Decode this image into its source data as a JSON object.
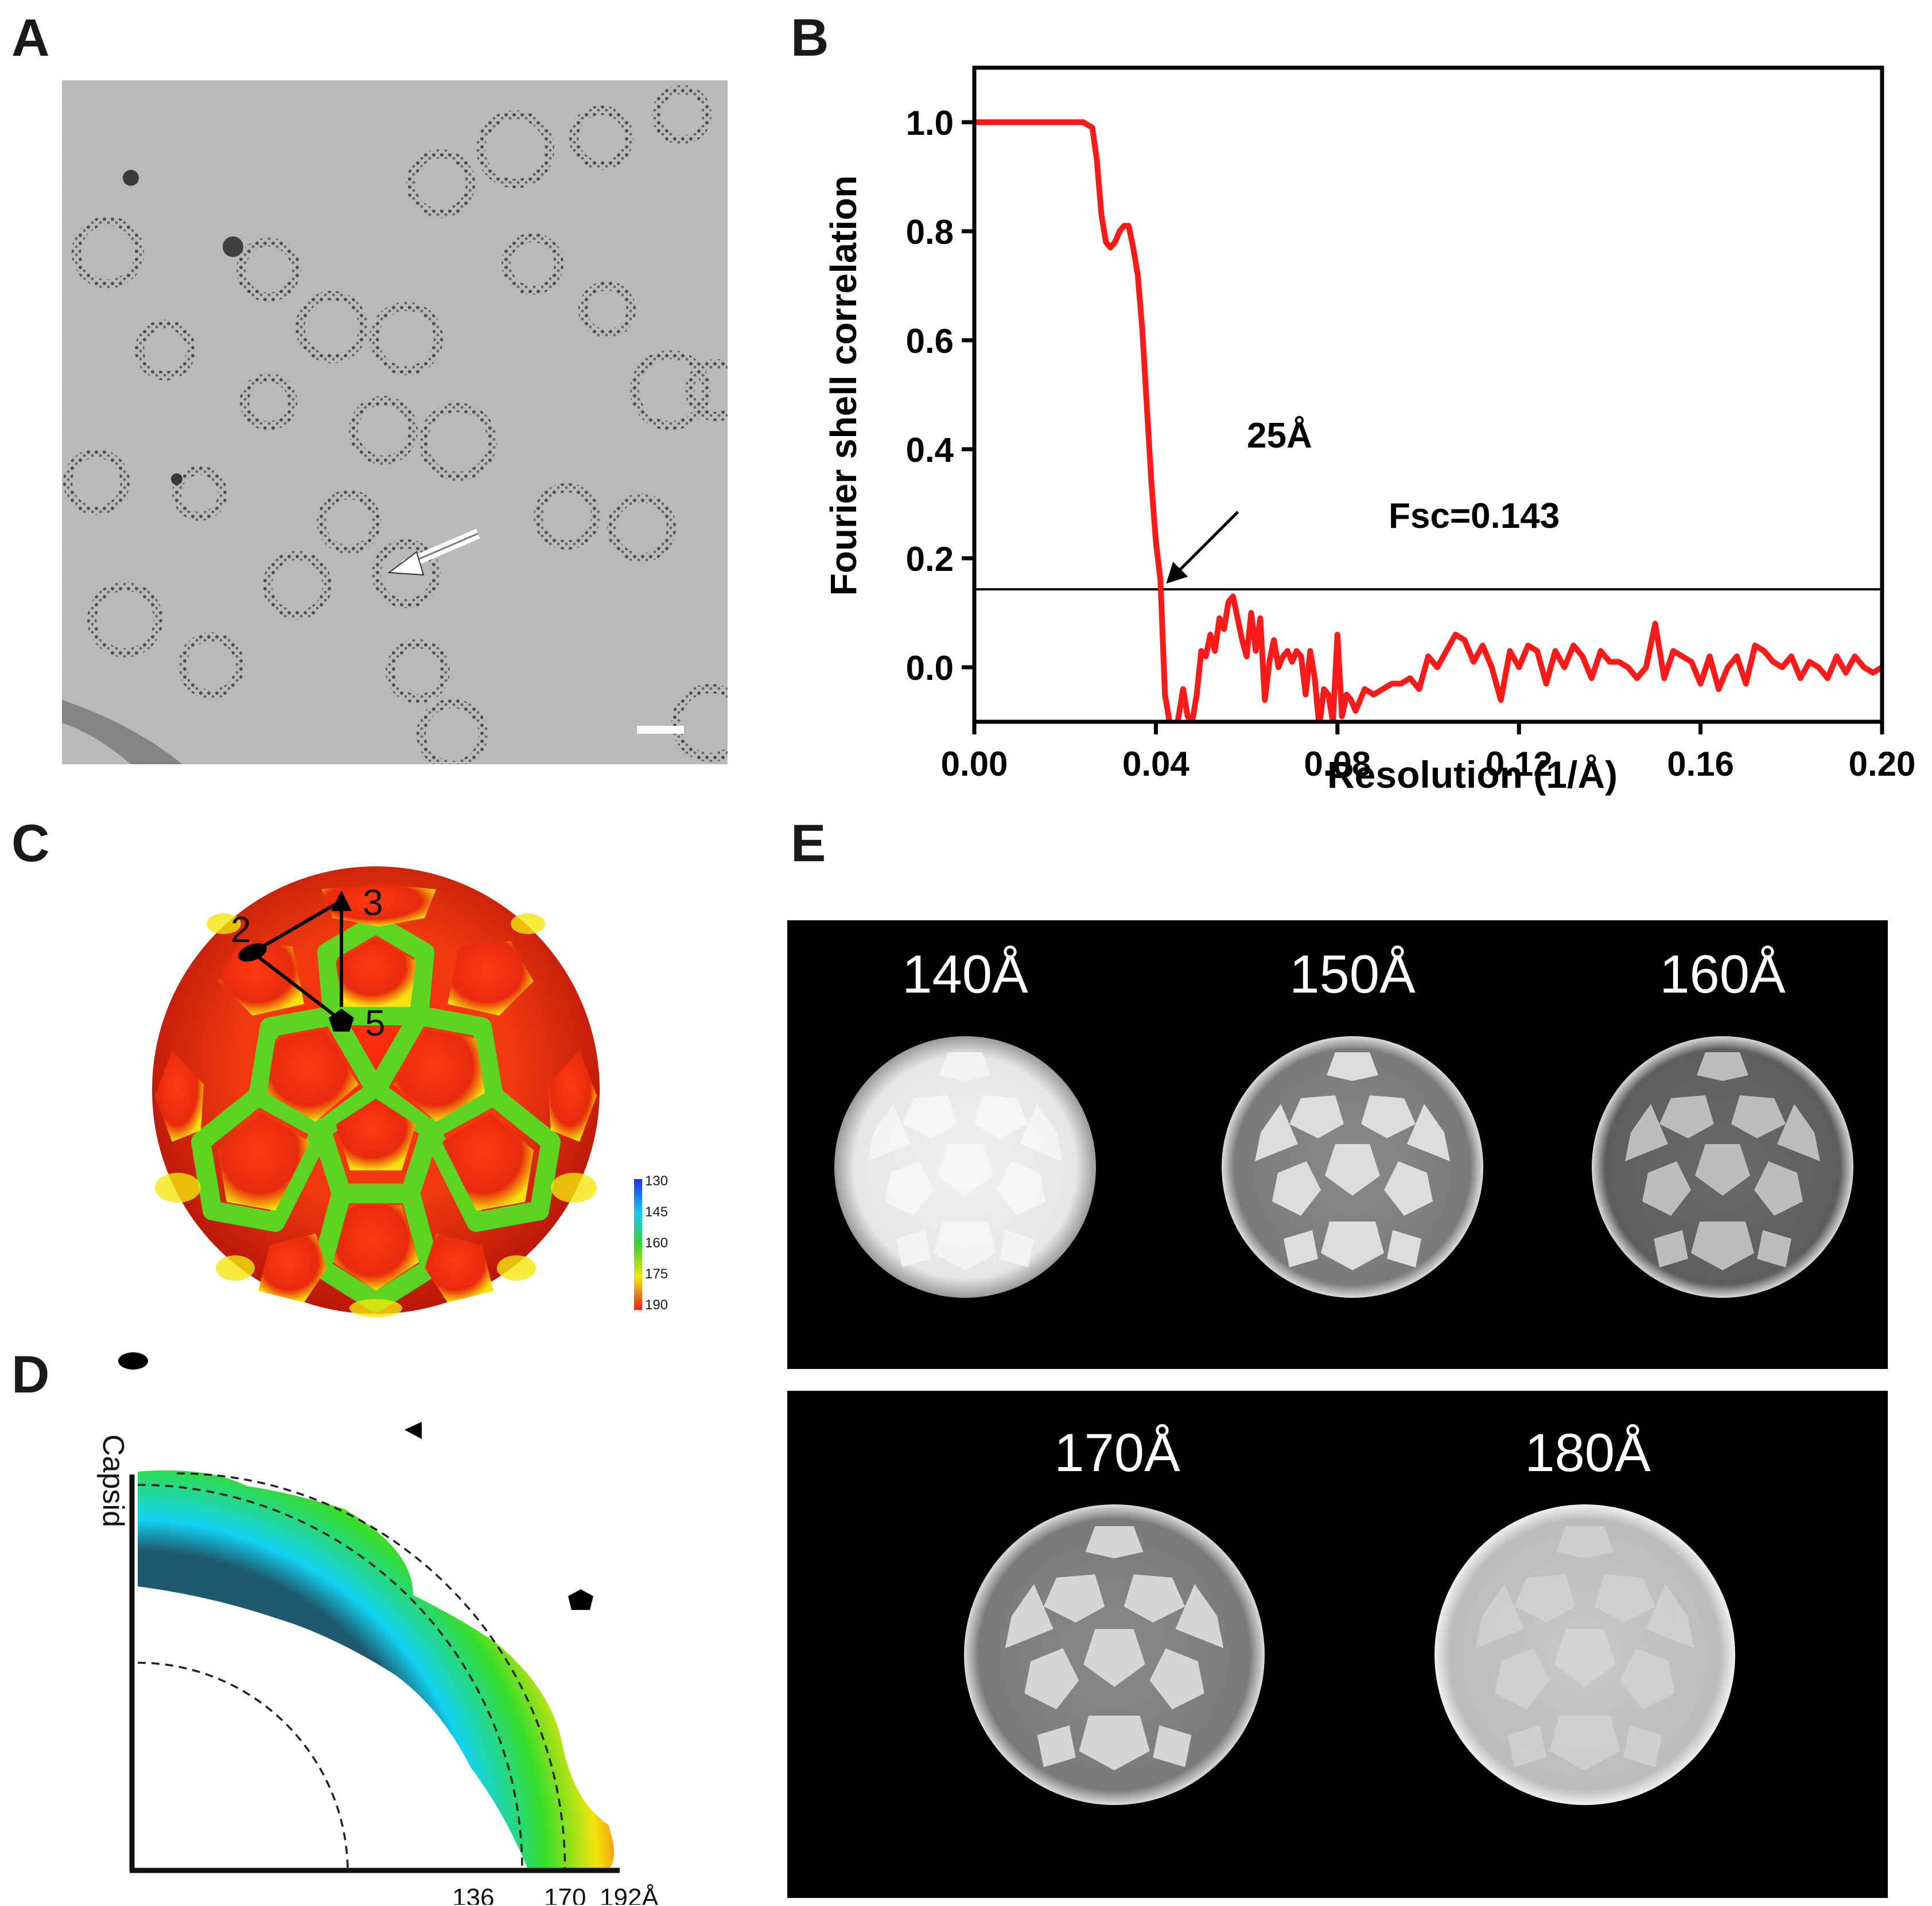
{
  "panels": {
    "a": {
      "letter": "A"
    },
    "b": {
      "letter": "B"
    },
    "c": {
      "letter": "C"
    },
    "d": {
      "letter": "D"
    },
    "e": {
      "letter": "E"
    }
  },
  "panel_c": {
    "labels": {
      "two_fold": "2",
      "three_fold": "3",
      "five_fold": "5"
    },
    "colorbar_ticks": [
      "130",
      "145",
      "160",
      "175",
      "190"
    ],
    "colorbar_colors": [
      "#1e2cff",
      "#10c8ff",
      "#35d62a",
      "#f5e60a",
      "#f21d10"
    ]
  },
  "panel_d": {
    "axis_label": "Capsid",
    "radius_labels": [
      "136",
      "170",
      "192Å"
    ]
  },
  "panel_e": {
    "shells": [
      "140Å",
      "150Å",
      "160Å",
      "170Å",
      "180Å"
    ]
  },
  "chart_data": {
    "type": "line",
    "xlabel": "Resolution (1/Å)",
    "ylabel": "Fourier shell correlation",
    "xlim": [
      0.0,
      0.2
    ],
    "ylim": [
      -0.1,
      1.1
    ],
    "xticks": [
      "0.00",
      "0.04",
      "0.08",
      "0.12",
      "0.16",
      "0.20"
    ],
    "yticks": [
      "0.0",
      "0.2",
      "0.4",
      "0.6",
      "0.8",
      "1.0"
    ],
    "threshold": {
      "y": 0.143,
      "label": "Fsc=0.143"
    },
    "annotation": {
      "text": "25Å",
      "x": 0.041,
      "y": 0.143
    },
    "line_color": "#ff1a1a",
    "series": [
      {
        "x": [
          0.0,
          0.005,
          0.01,
          0.015,
          0.02,
          0.024,
          0.026,
          0.027,
          0.028,
          0.029,
          0.03,
          0.031,
          0.032,
          0.033,
          0.034,
          0.035,
          0.036,
          0.037,
          0.038,
          0.039,
          0.04,
          0.041,
          0.042,
          0.043,
          0.044,
          0.045,
          0.046,
          0.047,
          0.048,
          0.049,
          0.05,
          0.051,
          0.052,
          0.053,
          0.054,
          0.055,
          0.056,
          0.057,
          0.058,
          0.059,
          0.06,
          0.061,
          0.062,
          0.063,
          0.064,
          0.065,
          0.066,
          0.067,
          0.068,
          0.069,
          0.07,
          0.071,
          0.072,
          0.073,
          0.074,
          0.075,
          0.076,
          0.077,
          0.078,
          0.079,
          0.08,
          0.081,
          0.082,
          0.083,
          0.084,
          0.085,
          0.086,
          0.088,
          0.09,
          0.092,
          0.094,
          0.096,
          0.098,
          0.1,
          0.102,
          0.104,
          0.106,
          0.108,
          0.11,
          0.112,
          0.114,
          0.116,
          0.118,
          0.12,
          0.122,
          0.124,
          0.126,
          0.128,
          0.13,
          0.132,
          0.134,
          0.136,
          0.138,
          0.14,
          0.142,
          0.144,
          0.146,
          0.148,
          0.15,
          0.152,
          0.154,
          0.156,
          0.158,
          0.16,
          0.162,
          0.164,
          0.166,
          0.168,
          0.17,
          0.172,
          0.174,
          0.176,
          0.178,
          0.18,
          0.182,
          0.184,
          0.186,
          0.188,
          0.19,
          0.192,
          0.194,
          0.196,
          0.198,
          0.2
        ],
        "y": [
          1.0,
          1.0,
          1.0,
          1.0,
          1.0,
          1.0,
          0.99,
          0.93,
          0.83,
          0.78,
          0.77,
          0.78,
          0.8,
          0.81,
          0.81,
          0.77,
          0.72,
          0.62,
          0.48,
          0.34,
          0.23,
          0.16,
          -0.05,
          -0.1,
          -0.14,
          -0.09,
          -0.04,
          -0.09,
          -0.1,
          -0.05,
          0.03,
          0.02,
          0.06,
          0.03,
          0.09,
          0.07,
          0.12,
          0.13,
          0.09,
          0.05,
          0.02,
          0.1,
          0.03,
          0.09,
          -0.06,
          0.01,
          0.05,
          0.0,
          0.02,
          0.03,
          0.01,
          0.03,
          0.02,
          -0.05,
          0.03,
          -0.02,
          -0.11,
          -0.04,
          -0.05,
          -0.1,
          0.06,
          -0.09,
          -0.05,
          -0.06,
          -0.08,
          -0.06,
          -0.04,
          -0.05,
          -0.04,
          -0.03,
          -0.03,
          -0.02,
          -0.04,
          0.02,
          0.0,
          0.03,
          0.06,
          0.05,
          0.01,
          0.04,
          0.0,
          -0.06,
          0.03,
          0.0,
          0.04,
          0.03,
          -0.03,
          0.03,
          0.0,
          0.04,
          0.02,
          -0.02,
          0.03,
          0.01,
          0.01,
          0.0,
          -0.02,
          0.0,
          0.08,
          -0.02,
          0.03,
          0.02,
          0.01,
          -0.03,
          0.02,
          -0.04,
          0.0,
          0.02,
          -0.03,
          0.04,
          0.03,
          0.01,
          0.0,
          0.02,
          -0.02,
          0.01,
          0.0,
          -0.02,
          0.02,
          -0.01,
          0.02,
          0.0,
          -0.01,
          0.0
        ]
      }
    ]
  }
}
